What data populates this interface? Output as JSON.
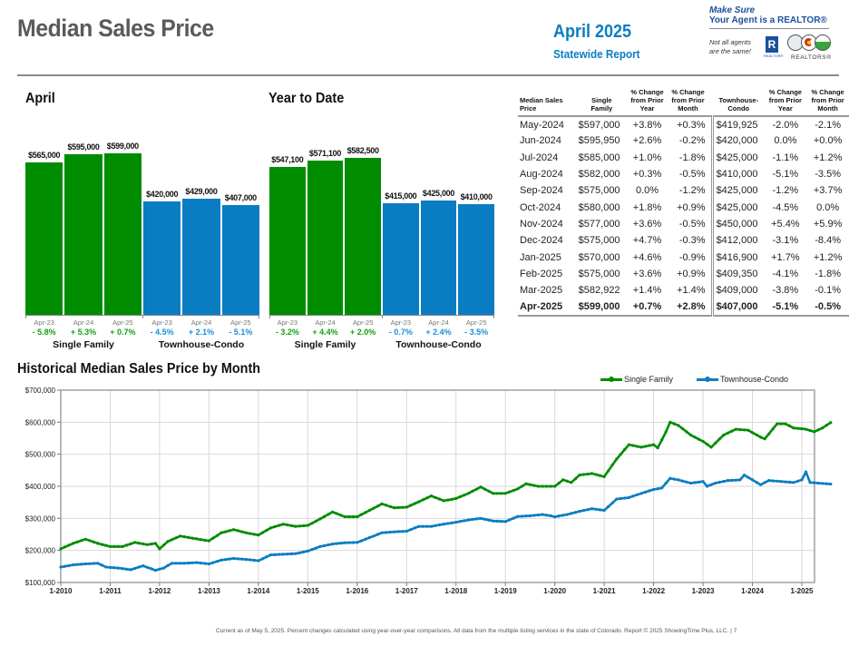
{
  "header": {
    "title": "Median Sales Price",
    "report_month": "April 2025",
    "report_scope": "Statewide Report",
    "logo": {
      "line1": "Make Sure",
      "line2": "Your Agent is a REALTOR®",
      "tagline_1": "Not all agents",
      "tagline_2": "are the same!",
      "realtor_mark": "R",
      "realtor_mark_sub": "REALTOR®",
      "association": "REALTORS®"
    }
  },
  "colors": {
    "single_family": "#008c00",
    "townhouse_condo": "#0a7dc2",
    "sf_pct_text": "#14a014",
    "tc_pct_text": "#1a8fd6",
    "title_gray": "#5a5a5a",
    "accent_blue": "#0a7dc2"
  },
  "chart_data": [
    {
      "type": "bar",
      "title": "April",
      "categories": [
        "Apr-23",
        "Apr-24",
        "Apr-25"
      ],
      "series": [
        {
          "name": "Single Family",
          "values": [
            565000,
            595000,
            599000
          ],
          "labels": [
            "$565,000",
            "$595,000",
            "$599,000"
          ],
          "pct_change": [
            "- 5.8%",
            "+ 5.3%",
            "+ 0.7%"
          ]
        },
        {
          "name": "Townhouse-Condo",
          "values": [
            420000,
            429000,
            407000
          ],
          "labels": [
            "$420,000",
            "$429,000",
            "$407,000"
          ],
          "pct_change": [
            "- 4.5%",
            "+ 2.1%",
            "- 5.1%"
          ]
        }
      ],
      "ylim": [
        0,
        700000
      ]
    },
    {
      "type": "bar",
      "title": "Year to Date",
      "categories": [
        "Apr-23",
        "Apr-24",
        "Apr-25"
      ],
      "series": [
        {
          "name": "Single Family",
          "values": [
            547100,
            571100,
            582500
          ],
          "labels": [
            "$547,100",
            "$571,100",
            "$582,500"
          ],
          "pct_change": [
            "- 3.2%",
            "+ 4.4%",
            "+ 2.0%"
          ]
        },
        {
          "name": "Townhouse-Condo",
          "values": [
            415000,
            425000,
            410000
          ],
          "labels": [
            "$415,000",
            "$425,000",
            "$410,000"
          ],
          "pct_change": [
            "- 0.7%",
            "+ 2.4%",
            "- 3.5%"
          ]
        }
      ],
      "ylim": [
        0,
        700000
      ]
    },
    {
      "type": "table",
      "columns": [
        "Median Sales Price",
        "Single Family",
        "% Change from Prior Year",
        "% Change from Prior Month",
        "Townhouse-Condo",
        "% Change from Prior Year",
        "% Change from Prior Month"
      ],
      "rows": [
        [
          "May-2024",
          "$597,000",
          "+3.8%",
          "+0.3%",
          "$419,925",
          "-2.0%",
          "-2.1%"
        ],
        [
          "Jun-2024",
          "$595,950",
          "+2.6%",
          "-0.2%",
          "$420,000",
          "0.0%",
          "+0.0%"
        ],
        [
          "Jul-2024",
          "$585,000",
          "+1.0%",
          "-1.8%",
          "$425,000",
          "-1.1%",
          "+1.2%"
        ],
        [
          "Aug-2024",
          "$582,000",
          "+0.3%",
          "-0.5%",
          "$410,000",
          "-5.1%",
          "-3.5%"
        ],
        [
          "Sep-2024",
          "$575,000",
          "0.0%",
          "-1.2%",
          "$425,000",
          "-1.2%",
          "+3.7%"
        ],
        [
          "Oct-2024",
          "$580,000",
          "+1.8%",
          "+0.9%",
          "$425,000",
          "-4.5%",
          "0.0%"
        ],
        [
          "Nov-2024",
          "$577,000",
          "+3.6%",
          "-0.5%",
          "$450,000",
          "+5.4%",
          "+5.9%"
        ],
        [
          "Dec-2024",
          "$575,000",
          "+4.7%",
          "-0.3%",
          "$412,000",
          "-3.1%",
          "-8.4%"
        ],
        [
          "Jan-2025",
          "$570,000",
          "+4.6%",
          "-0.9%",
          "$416,900",
          "+1.7%",
          "+1.2%"
        ],
        [
          "Feb-2025",
          "$575,000",
          "+3.6%",
          "+0.9%",
          "$409,350",
          "-4.1%",
          "-1.8%"
        ],
        [
          "Mar-2025",
          "$582,922",
          "+1.4%",
          "+1.4%",
          "$409,000",
          "-3.8%",
          "-0.1%"
        ],
        [
          "Apr-2025",
          "$599,000",
          "+0.7%",
          "+2.8%",
          "$407,000",
          "-5.1%",
          "-0.5%"
        ]
      ]
    },
    {
      "type": "line",
      "title": "Historical Median Sales Price by Month",
      "xlabel": "",
      "ylabel": "",
      "x_start": "1-2010",
      "x_end": "4-2025",
      "x_ticks": [
        "1-2010",
        "1-2011",
        "1-2012",
        "1-2013",
        "1-2014",
        "1-2015",
        "1-2016",
        "1-2017",
        "1-2018",
        "1-2019",
        "1-2020",
        "1-2021",
        "1-2022",
        "1-2023",
        "1-2024",
        "1-2025"
      ],
      "y_ticks": [
        "$100,000",
        "$200,000",
        "$300,000",
        "$400,000",
        "$500,000",
        "$600,000",
        "$700,000"
      ],
      "ylim": [
        100000,
        700000
      ],
      "grid": true,
      "legend": "top-right",
      "series_keyframes_note": "values by year-month index (0 = Jan 2010), linearly interpolated between keyframes",
      "series": [
        {
          "name": "Single Family",
          "keyframes": [
            [
              0,
              205000
            ],
            [
              3,
              222000
            ],
            [
              6,
              235000
            ],
            [
              9,
              222000
            ],
            [
              12,
              212000
            ],
            [
              15,
              212000
            ],
            [
              18,
              225000
            ],
            [
              21,
              218000
            ],
            [
              23,
              222000
            ],
            [
              24,
              205000
            ],
            [
              26,
              228000
            ],
            [
              29,
              245000
            ],
            [
              32,
              238000
            ],
            [
              36,
              230000
            ],
            [
              39,
              255000
            ],
            [
              42,
              265000
            ],
            [
              45,
              255000
            ],
            [
              48,
              248000
            ],
            [
              51,
              270000
            ],
            [
              54,
              282000
            ],
            [
              57,
              275000
            ],
            [
              60,
              278000
            ],
            [
              63,
              298000
            ],
            [
              66,
              320000
            ],
            [
              69,
              305000
            ],
            [
              72,
              305000
            ],
            [
              75,
              325000
            ],
            [
              78,
              345000
            ],
            [
              81,
              333000
            ],
            [
              84,
              335000
            ],
            [
              87,
              352000
            ],
            [
              90,
              370000
            ],
            [
              93,
              355000
            ],
            [
              96,
              362000
            ],
            [
              99,
              378000
            ],
            [
              102,
              398000
            ],
            [
              105,
              378000
            ],
            [
              108,
              378000
            ],
            [
              111,
              392000
            ],
            [
              113,
              408000
            ],
            [
              116,
              400000
            ],
            [
              120,
              400000
            ],
            [
              122,
              420000
            ],
            [
              124,
              412000
            ],
            [
              126,
              435000
            ],
            [
              129,
              440000
            ],
            [
              132,
              430000
            ],
            [
              135,
              485000
            ],
            [
              138,
              530000
            ],
            [
              141,
              522000
            ],
            [
              144,
              530000
            ],
            [
              145,
              520000
            ],
            [
              147,
              570000
            ],
            [
              148,
              600000
            ],
            [
              150,
              590000
            ],
            [
              153,
              560000
            ],
            [
              156,
              540000
            ],
            [
              158,
              522000
            ],
            [
              161,
              560000
            ],
            [
              164,
              578000
            ],
            [
              167,
              575000
            ],
            [
              170,
              553000
            ],
            [
              171,
              548000
            ],
            [
              174,
              595000
            ],
            [
              176,
              595000
            ],
            [
              178,
              582000
            ],
            [
              181,
              578000
            ],
            [
              183,
              570000
            ],
            [
              185,
              582000
            ],
            [
              187,
              599000
            ]
          ]
        },
        {
          "name": "Townhouse-Condo",
          "keyframes": [
            [
              0,
              148000
            ],
            [
              3,
              155000
            ],
            [
              6,
              158000
            ],
            [
              9,
              160000
            ],
            [
              11,
              148000
            ],
            [
              14,
              145000
            ],
            [
              17,
              140000
            ],
            [
              20,
              152000
            ],
            [
              23,
              138000
            ],
            [
              25,
              145000
            ],
            [
              27,
              160000
            ],
            [
              30,
              160000
            ],
            [
              33,
              162000
            ],
            [
              36,
              158000
            ],
            [
              39,
              170000
            ],
            [
              42,
              175000
            ],
            [
              45,
              172000
            ],
            [
              48,
              168000
            ],
            [
              51,
              186000
            ],
            [
              54,
              188000
            ],
            [
              57,
              190000
            ],
            [
              60,
              198000
            ],
            [
              63,
              212000
            ],
            [
              66,
              220000
            ],
            [
              69,
              224000
            ],
            [
              72,
              225000
            ],
            [
              75,
              240000
            ],
            [
              78,
              255000
            ],
            [
              81,
              258000
            ],
            [
              84,
              260000
            ],
            [
              87,
              275000
            ],
            [
              90,
              275000
            ],
            [
              93,
              282000
            ],
            [
              96,
              288000
            ],
            [
              99,
              295000
            ],
            [
              102,
              300000
            ],
            [
              105,
              292000
            ],
            [
              108,
              290000
            ],
            [
              111,
              306000
            ],
            [
              114,
              308000
            ],
            [
              117,
              312000
            ],
            [
              119,
              308000
            ],
            [
              120,
              305000
            ],
            [
              123,
              312000
            ],
            [
              126,
              322000
            ],
            [
              129,
              330000
            ],
            [
              132,
              325000
            ],
            [
              135,
              360000
            ],
            [
              138,
              365000
            ],
            [
              141,
              378000
            ],
            [
              144,
              390000
            ],
            [
              146,
              395000
            ],
            [
              148,
              425000
            ],
            [
              150,
              420000
            ],
            [
              153,
              410000
            ],
            [
              156,
              415000
            ],
            [
              157,
              400000
            ],
            [
              159,
              410000
            ],
            [
              162,
              418000
            ],
            [
              165,
              420000
            ],
            [
              166,
              435000
            ],
            [
              168,
              420000
            ],
            [
              170,
              405000
            ],
            [
              172,
              418000
            ],
            [
              175,
              415000
            ],
            [
              178,
              412000
            ],
            [
              180,
              420000
            ],
            [
              181,
              445000
            ],
            [
              182,
              412000
            ],
            [
              184,
              410000
            ],
            [
              187,
              407000
            ]
          ]
        }
      ]
    }
  ],
  "sections": {
    "april_title": "April",
    "ytd_title": "Year to Date",
    "group_sf": "Single Family",
    "group_tc": "Townhouse-Condo",
    "hist_title": "Historical Median Sales Price by Month",
    "legend_sf": "Single Family",
    "legend_tc": "Townhouse-Condo"
  },
  "table_headers": {
    "month": [
      "Median Sales",
      "Price"
    ],
    "sf": [
      "Single",
      "Family"
    ],
    "pct_year": [
      "% Change",
      "from Prior",
      "Year"
    ],
    "pct_month": [
      "% Change",
      "from Prior",
      "Month"
    ],
    "tc": [
      "Townhouse-",
      "Condo"
    ]
  },
  "footer": {
    "text": "Current as of May 5, 2025. Percent changes calculated using year-over-year comparisons. All data from the multiple listing services in the state of Colorado. Report © 2025 ShowingTime Plus, LLC.  |  7"
  }
}
